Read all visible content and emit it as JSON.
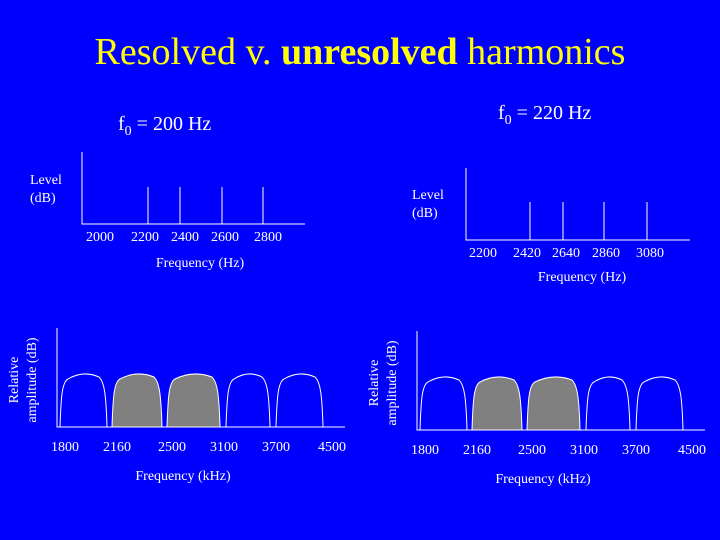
{
  "title": {
    "parts": [
      "Resolved v. ",
      "unresolved",
      " harmonics"
    ]
  },
  "panels": [
    {
      "f0": {
        "base": "f",
        "sub": "0",
        "rest": " = 200 Hz"
      },
      "spectrum": {
        "ylabel": [
          "Level",
          "(dB)"
        ],
        "ticks": [
          "2000",
          "2200",
          "2400",
          "2600",
          "2800"
        ],
        "xlabel": "Frequency (Hz)"
      },
      "filters": {
        "ylabel": [
          "Relative",
          "amplitude (dB)"
        ],
        "ticks": [
          "1800",
          "2160",
          "2500",
          "3100",
          "3700",
          "4500"
        ],
        "xlabel": "Frequency (kHz)"
      }
    },
    {
      "f0": {
        "base": "f",
        "sub": "0",
        "rest": " = 220 Hz"
      },
      "spectrum": {
        "ylabel": [
          "Level",
          "(dB)"
        ],
        "ticks": [
          "2200",
          "2420",
          "2640",
          "2860",
          "3080"
        ],
        "xlabel": "Frequency (Hz)"
      },
      "filters": {
        "ylabel": [
          "Relative",
          "amplitude (dB)"
        ],
        "ticks": [
          "1800",
          "2160",
          "2500",
          "3100",
          "3700",
          "4500"
        ],
        "xlabel": "Frequency (kHz)"
      }
    }
  ]
}
